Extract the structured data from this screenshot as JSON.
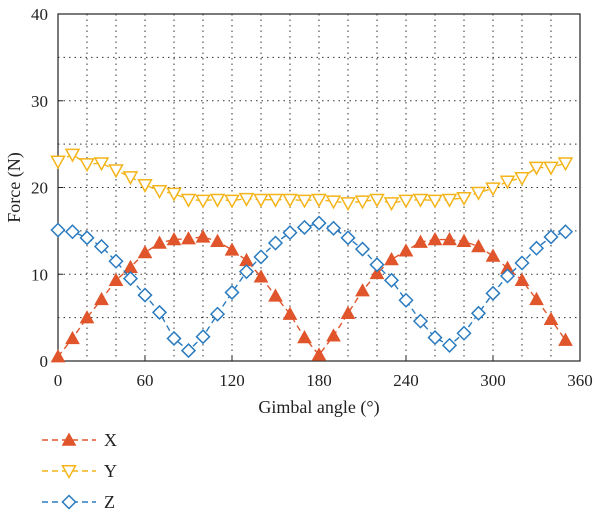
{
  "chart_data": {
    "type": "line",
    "xlabel": "Gimbal angle (°)",
    "ylabel": "Force (N)",
    "xlim": [
      0,
      360
    ],
    "ylim": [
      0,
      40
    ],
    "x_ticks": [
      0,
      60,
      120,
      180,
      240,
      300,
      360
    ],
    "y_ticks": [
      0,
      10,
      20,
      30,
      40
    ],
    "grid": true,
    "legend_position": "below-left",
    "x": [
      0,
      10,
      20,
      30,
      40,
      50,
      60,
      70,
      80,
      90,
      100,
      110,
      120,
      130,
      140,
      150,
      160,
      170,
      180,
      190,
      200,
      210,
      220,
      230,
      240,
      250,
      260,
      270,
      280,
      290,
      300,
      310,
      320,
      330,
      340,
      350
    ],
    "series": [
      {
        "name": "X",
        "color": "#e0552b",
        "marker": "triangle-up",
        "values": [
          0.5,
          2.6,
          5.0,
          7.1,
          9.3,
          10.8,
          12.5,
          13.6,
          14.0,
          14.1,
          14.3,
          13.8,
          12.8,
          11.6,
          9.7,
          7.5,
          5.4,
          2.7,
          0.7,
          2.9,
          5.5,
          8.1,
          10.1,
          11.7,
          12.7,
          13.7,
          14.0,
          14.0,
          13.8,
          13.2,
          12.1,
          10.7,
          9.3,
          7.1,
          4.8,
          2.4
        ]
      },
      {
        "name": "Y",
        "color": "#f4b41a",
        "marker": "triangle-down",
        "values": [
          23.0,
          23.8,
          22.7,
          22.8,
          22.0,
          21.2,
          20.3,
          19.6,
          19.3,
          18.6,
          18.5,
          18.6,
          18.5,
          18.7,
          18.6,
          18.6,
          18.6,
          18.5,
          18.6,
          18.4,
          18.2,
          18.4,
          18.6,
          18.2,
          18.5,
          18.6,
          18.5,
          18.6,
          18.8,
          19.4,
          19.9,
          20.7,
          21.1,
          22.3,
          22.3,
          22.8
        ]
      },
      {
        "name": "Z",
        "color": "#2a7bbf",
        "marker": "diamond",
        "values": [
          15.1,
          14.9,
          14.2,
          13.2,
          11.5,
          9.5,
          7.6,
          5.6,
          2.6,
          1.2,
          2.8,
          5.4,
          7.9,
          10.3,
          12.0,
          13.6,
          14.8,
          15.4,
          15.9,
          15.3,
          14.2,
          12.9,
          11.1,
          9.3,
          7.0,
          4.6,
          2.7,
          1.8,
          3.2,
          5.5,
          7.8,
          9.8,
          11.3,
          13.0,
          14.3,
          14.9
        ]
      }
    ]
  }
}
